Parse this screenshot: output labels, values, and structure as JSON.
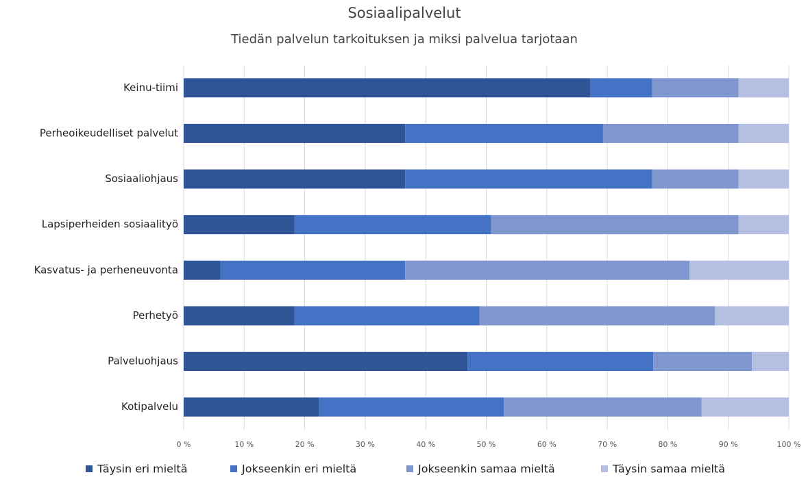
{
  "chart_data": {
    "type": "stacked_barh",
    "title": "Sosiaalipalvelut",
    "subtitle": "Tiedän palvelun tarkoituksen ja miksi palvelua tarjotaan",
    "categories": [
      "Keinu-tiimi",
      "Perheoikeudelliset palvelut",
      "Sosiaaliohjaus",
      "Lapsiperheiden sosiaalityö",
      "Kasvatus- ja perheneuvonta",
      "Perhetyö",
      "Palveluohjaus",
      "Kotipalvelu"
    ],
    "series": [
      {
        "name": "Täysin eri mieltä",
        "color": "#2f5597",
        "values": [
          67.2,
          36.6,
          36.6,
          18.3,
          6.1,
          18.3,
          46.9,
          22.4
        ]
      },
      {
        "name": "Jokseenkin eri mieltä",
        "color": "#4472c4",
        "values": [
          10.2,
          32.7,
          40.8,
          32.5,
          30.5,
          30.6,
          30.7,
          30.5
        ]
      },
      {
        "name": "Jokseenkin samaa mieltä",
        "color": "#7f96cf",
        "values": [
          14.3,
          22.4,
          14.3,
          40.9,
          47.0,
          38.9,
          16.3,
          32.7
        ]
      },
      {
        "name": "Täysin samaa mieltä",
        "color": "#b4bfe2",
        "values": [
          8.3,
          8.3,
          8.3,
          8.3,
          16.4,
          12.2,
          6.1,
          14.4
        ]
      }
    ],
    "xlim": [
      0,
      100
    ],
    "xticks": [
      {
        "value": 0,
        "label": "0 %"
      },
      {
        "value": 10,
        "label": "10 %"
      },
      {
        "value": 20,
        "label": "20 %"
      },
      {
        "value": 30,
        "label": "30 %"
      },
      {
        "value": 40,
        "label": "40 %"
      },
      {
        "value": 50,
        "label": "50 %"
      },
      {
        "value": 60,
        "label": "60 %"
      },
      {
        "value": 70,
        "label": "70 %"
      },
      {
        "value": 80,
        "label": "80 %"
      },
      {
        "value": 90,
        "label": "90 %"
      },
      {
        "value": 100,
        "label": "100 %"
      }
    ],
    "grid": true,
    "legend": "bottom"
  }
}
